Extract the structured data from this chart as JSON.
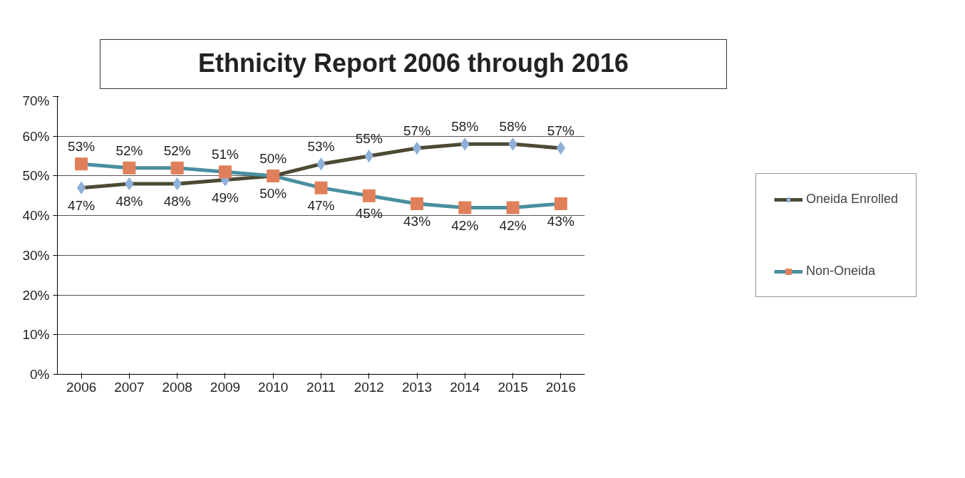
{
  "chart_data": {
    "type": "line",
    "title": "Ethnicity Report 2006 through 2016",
    "categories": [
      "2006",
      "2007",
      "2008",
      "2009",
      "2010",
      "2011",
      "2012",
      "2013",
      "2014",
      "2015",
      "2016"
    ],
    "series": [
      {
        "name": "Oneida Enrolled",
        "color": "#8fb0d8",
        "marker": "diamond",
        "values": [
          47,
          48,
          48,
          49,
          50,
          53,
          55,
          57,
          58,
          58,
          57
        ],
        "value_labels": [
          "47%",
          "48%",
          "48%",
          "49%",
          "50%",
          "53%",
          "55%",
          "57%",
          "58%",
          "58%",
          "57%"
        ]
      },
      {
        "name": "Non-Oneida",
        "color": "#e0805a",
        "marker": "square",
        "values": [
          53,
          52,
          52,
          51,
          50,
          47,
          45,
          43,
          42,
          42,
          43
        ],
        "value_labels": [
          "53%",
          "52%",
          "52%",
          "51%",
          "50%",
          "47%",
          "45%",
          "43%",
          "42%",
          "42%",
          "43%"
        ]
      }
    ],
    "ylim": [
      0,
      70
    ],
    "yticks": [
      {
        "value": 0,
        "label": "0%"
      },
      {
        "value": 10,
        "label": "10%"
      },
      {
        "value": 20,
        "label": "20%"
      },
      {
        "value": 30,
        "label": "30%"
      },
      {
        "value": 40,
        "label": "40%"
      },
      {
        "value": 50,
        "label": "50%"
      },
      {
        "value": 60,
        "label": "60%"
      },
      {
        "value": 70,
        "label": "70%"
      }
    ],
    "grid": "y",
    "legend": "right",
    "line_style": "solid"
  }
}
